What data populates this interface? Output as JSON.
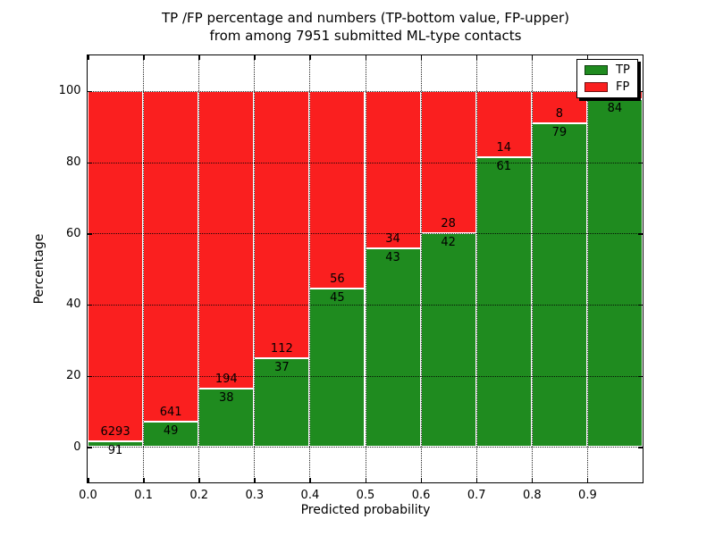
{
  "chart_data": {
    "type": "bar",
    "stacked": true,
    "title_line1": "TP /FP percentage and numbers (TP-bottom value, FP-upper)",
    "title_line2": "from among 7951 submitted ML-type contacts",
    "total_contacts": 7951,
    "xlabel": "Predicted probability",
    "ylabel": "Percentage",
    "x_ticks": [
      0.0,
      0.1,
      0.2,
      0.3,
      0.4,
      0.5,
      0.6,
      0.7,
      0.8,
      0.9
    ],
    "x_tick_labels": [
      "0.0",
      "0.1",
      "0.2",
      "0.3",
      "0.4",
      "0.5",
      "0.6",
      "0.7",
      "0.8",
      "0.9"
    ],
    "y_ticks": [
      0,
      20,
      40,
      60,
      80,
      100
    ],
    "y_tick_labels": [
      "0",
      "20",
      "40",
      "60",
      "80",
      "100"
    ],
    "xlim": [
      0.0,
      1.0
    ],
    "ylim": [
      -10,
      110
    ],
    "grid": true,
    "colors": {
      "tp": "#1f8b1f",
      "fp": "#fa1f1f"
    },
    "legend": {
      "position": "upper right",
      "entries": [
        {
          "label": "TP",
          "color": "#1f8b1f"
        },
        {
          "label": "FP",
          "color": "#fa1f1f"
        }
      ]
    },
    "bins": [
      {
        "range": [
          0.0,
          0.1
        ],
        "tp": 91,
        "fp": 6293,
        "tp_label": "91",
        "fp_label": "6293"
      },
      {
        "range": [
          0.1,
          0.2
        ],
        "tp": 49,
        "fp": 641,
        "tp_label": "49",
        "fp_label": "641"
      },
      {
        "range": [
          0.2,
          0.3
        ],
        "tp": 38,
        "fp": 194,
        "tp_label": "38",
        "fp_label": "194"
      },
      {
        "range": [
          0.3,
          0.4
        ],
        "tp": 37,
        "fp": 112,
        "tp_label": "37",
        "fp_label": "112"
      },
      {
        "range": [
          0.4,
          0.5
        ],
        "tp": 45,
        "fp": 56,
        "tp_label": "45",
        "fp_label": "56"
      },
      {
        "range": [
          0.5,
          0.6
        ],
        "tp": 43,
        "fp": 34,
        "tp_label": "43",
        "fp_label": "34"
      },
      {
        "range": [
          0.6,
          0.7
        ],
        "tp": 42,
        "fp": 28,
        "tp_label": "42",
        "fp_label": "28"
      },
      {
        "range": [
          0.7,
          0.8
        ],
        "tp": 61,
        "fp": 14,
        "tp_label": "61",
        "fp_label": "14"
      },
      {
        "range": [
          0.8,
          0.9
        ],
        "tp": 79,
        "fp": 8,
        "tp_label": "79",
        "fp_label": "8"
      },
      {
        "range": [
          0.9,
          1.0
        ],
        "tp": 84,
        "fp": 2,
        "tp_label": "84",
        "fp_label": ""
      }
    ]
  }
}
